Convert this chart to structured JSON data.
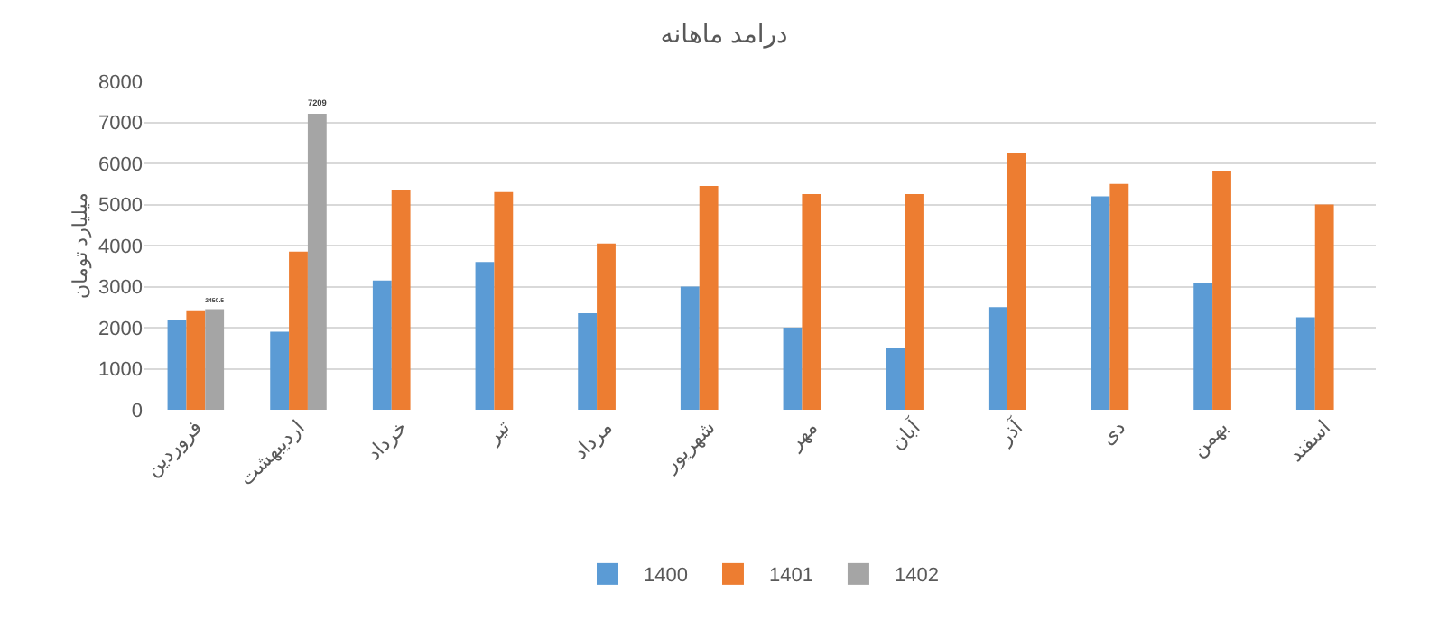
{
  "chart_data": {
    "type": "bar",
    "title": "درامد ماهانه",
    "ylabel": "میلیارد تومان",
    "categories": [
      "فروردین",
      "اردیبهشت",
      "خرداد",
      "تیر",
      "مرداد",
      "شهریور",
      "مهر",
      "آبان",
      "آذر",
      "دی",
      "بهمن",
      "اسفند"
    ],
    "series": [
      {
        "name": "1400",
        "color": "#5b9bd5",
        "values": [
          2200,
          1900,
          3150,
          3600,
          2350,
          3000,
          2000,
          1500,
          2500,
          5200,
          3100,
          2250
        ]
      },
      {
        "name": "1401",
        "color": "#ed7d31",
        "values": [
          2400,
          3850,
          5350,
          5300,
          4050,
          5450,
          5250,
          5250,
          6250,
          5500,
          5800,
          5000
        ]
      },
      {
        "name": "1402",
        "color": "#a5a5a5",
        "values": [
          2450.5,
          7209,
          null,
          null,
          null,
          null,
          null,
          null,
          null,
          null,
          null,
          null
        ],
        "value_labels": [
          "2450.5",
          "7209",
          null,
          null,
          null,
          null,
          null,
          null,
          null,
          null,
          null,
          null
        ]
      }
    ],
    "ylim": [
      0,
      8000
    ],
    "yticks": [
      0,
      1000,
      2000,
      3000,
      4000,
      5000,
      6000,
      7000,
      8000
    ],
    "grid": "y",
    "legend": "bottom"
  }
}
